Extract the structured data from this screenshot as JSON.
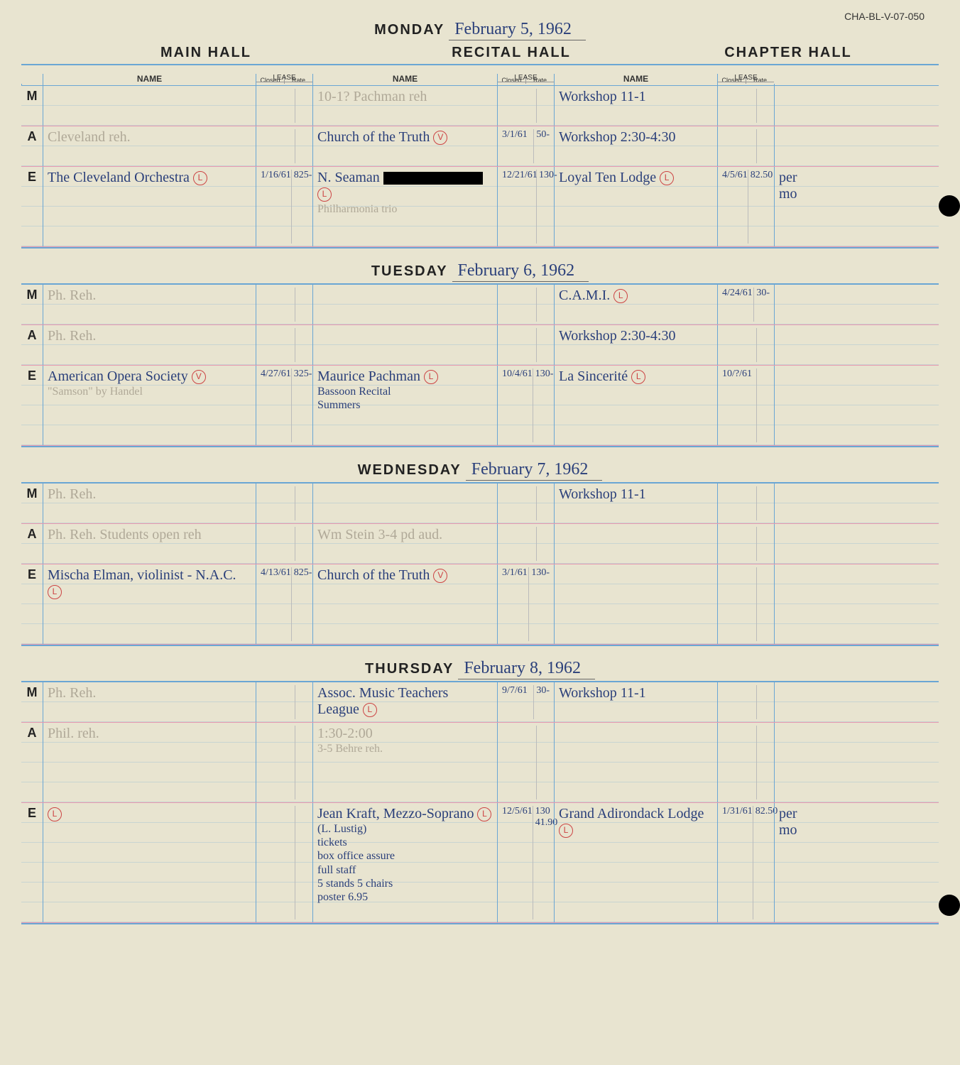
{
  "doc_id": "CHA-BL-V-07-050",
  "halls": {
    "main": "MAIN HALL",
    "recital": "RECITAL HALL",
    "chapter": "CHAPTER HALL"
  },
  "column_labels": {
    "name": "NAME",
    "lease": "LEASE",
    "closed": "Closed",
    "rate": "Rate"
  },
  "colors": {
    "paper": "#e8e4d0",
    "ink_blue": "#2a3f7a",
    "rule_blue": "#6aa6d4",
    "rule_pink": "#e89ab0",
    "faint": "#b0a998",
    "red": "#c44"
  },
  "days": [
    {
      "label": "MONDAY",
      "date": "February 5, 1962",
      "rows": [
        {
          "slot": "M",
          "main": "",
          "main_lease": [
            "",
            ""
          ],
          "recital": "10-1? Pachman reh",
          "recital_faint": true,
          "recital_lease": [
            "",
            ""
          ],
          "chapter": "Workshop 11-1",
          "chapter_lease": [
            "",
            ""
          ]
        },
        {
          "slot": "A",
          "main": "Cleveland reh.",
          "main_faint": true,
          "main_lease": [
            "",
            ""
          ],
          "recital": "Church of the Truth",
          "recital_mark": "V",
          "recital_lease": [
            "3/1/61",
            "50-"
          ],
          "chapter": "Workshop 2:30-4:30",
          "chapter_lease": [
            "",
            ""
          ]
        },
        {
          "slot": "E",
          "tall": true,
          "main": "The Cleveland Orchestra",
          "main_mark": "L",
          "main_lease": [
            "1/16/61",
            "825-"
          ],
          "recital": "N. Seaman",
          "recital_redacted": true,
          "recital_sub": "Philharmonia trio",
          "recital_sub_faint": true,
          "recital_mark": "L",
          "recital_lease": [
            "12/21/61",
            "130-"
          ],
          "chapter": "Loyal Ten Lodge",
          "chapter_mark": "L",
          "chapter_lease": [
            "4/5/61",
            "82.50"
          ],
          "chapter_tail": "per mo"
        }
      ]
    },
    {
      "label": "TUESDAY",
      "date": "February 6, 1962",
      "rows": [
        {
          "slot": "M",
          "main": "Ph. Reh.",
          "main_faint": true,
          "main_lease": [
            "",
            ""
          ],
          "recital": "",
          "recital_lease": [
            "",
            ""
          ],
          "chapter": "C.A.M.I.",
          "chapter_mark": "L",
          "chapter_lease": [
            "4/24/61",
            "30-"
          ]
        },
        {
          "slot": "A",
          "main": "Ph. Reh.",
          "main_faint": true,
          "main_lease": [
            "",
            ""
          ],
          "recital": "",
          "recital_lease": [
            "",
            ""
          ],
          "chapter": "Workshop 2:30-4:30",
          "chapter_lease": [
            "",
            ""
          ]
        },
        {
          "slot": "E",
          "tall": true,
          "main": "American Opera Society",
          "main_sub": "\"Samson\" by Handel",
          "main_sub_faint": true,
          "main_mark": "V",
          "main_lease": [
            "4/27/61",
            "325-"
          ],
          "recital": "Maurice Pachman",
          "recital_sub": "Bassoon Recital\nSummers",
          "recital_mark": "L",
          "recital_lease": [
            "10/4/61",
            "130-"
          ],
          "chapter": "La Sincerité",
          "chapter_mark": "L",
          "chapter_lease": [
            "10/?/61",
            ""
          ]
        }
      ]
    },
    {
      "label": "WEDNESDAY",
      "date": "February 7, 1962",
      "rows": [
        {
          "slot": "M",
          "main": "Ph. Reh.",
          "main_faint": true,
          "main_lease": [
            "",
            ""
          ],
          "recital": "",
          "recital_lease": [
            "",
            ""
          ],
          "chapter": "Workshop 11-1",
          "chapter_lease": [
            "",
            ""
          ]
        },
        {
          "slot": "A",
          "main": "Ph. Reh. Students open reh",
          "main_faint": true,
          "main_lease": [
            "",
            ""
          ],
          "recital": "Wm Stein 3-4 pd aud.",
          "recital_faint": true,
          "recital_lease": [
            "",
            ""
          ],
          "chapter": "",
          "chapter_lease": [
            "",
            ""
          ]
        },
        {
          "slot": "E",
          "tall": true,
          "main": "Mischa Elman, violinist - N.A.C.",
          "main_mark": "L",
          "main_lease": [
            "4/13/61",
            "825-"
          ],
          "recital": "Church of the Truth",
          "recital_mark": "V",
          "recital_lease": [
            "3/1/61",
            "130-"
          ],
          "chapter": "",
          "chapter_lease": [
            "",
            ""
          ]
        }
      ]
    },
    {
      "label": "THURSDAY",
      "date": "February 8, 1962",
      "rows": [
        {
          "slot": "M",
          "main": "Ph. Reh.",
          "main_faint": true,
          "main_lease": [
            "",
            ""
          ],
          "recital": "Assoc. Music Teachers League",
          "recital_mark": "L",
          "recital_lease": [
            "9/7/61",
            "30-"
          ],
          "chapter": "Workshop 11-1",
          "chapter_lease": [
            "",
            ""
          ]
        },
        {
          "slot": "A",
          "tall": true,
          "main": "Phil. reh.",
          "main_faint": true,
          "main_lease": [
            "",
            ""
          ],
          "recital": "1:30-2:00",
          "recital_faint": true,
          "recital_sub": "3-5 Behre reh.",
          "recital_sub_faint": true,
          "recital_lease": [
            "",
            ""
          ],
          "chapter": "",
          "chapter_lease": [
            "",
            ""
          ]
        },
        {
          "slot": "E",
          "xtall": true,
          "main": "",
          "main_faint": true,
          "main_mark": "L",
          "main_lease": [
            "",
            ""
          ],
          "recital": "Jean Kraft, Mezzo-Soprano",
          "recital_sub": "(L. Lustig)\ntickets\nbox office assure\nfull staff\n5 stands 5 chairs\nposter    6.95",
          "recital_mark": "L",
          "recital_lease": [
            "12/5/61",
            "130\n41.90"
          ],
          "chapter": "Grand Adirondack Lodge",
          "chapter_mark": "L",
          "chapter_lease": [
            "1/31/61",
            "82.50"
          ],
          "chapter_tail": "per mo"
        }
      ]
    }
  ]
}
